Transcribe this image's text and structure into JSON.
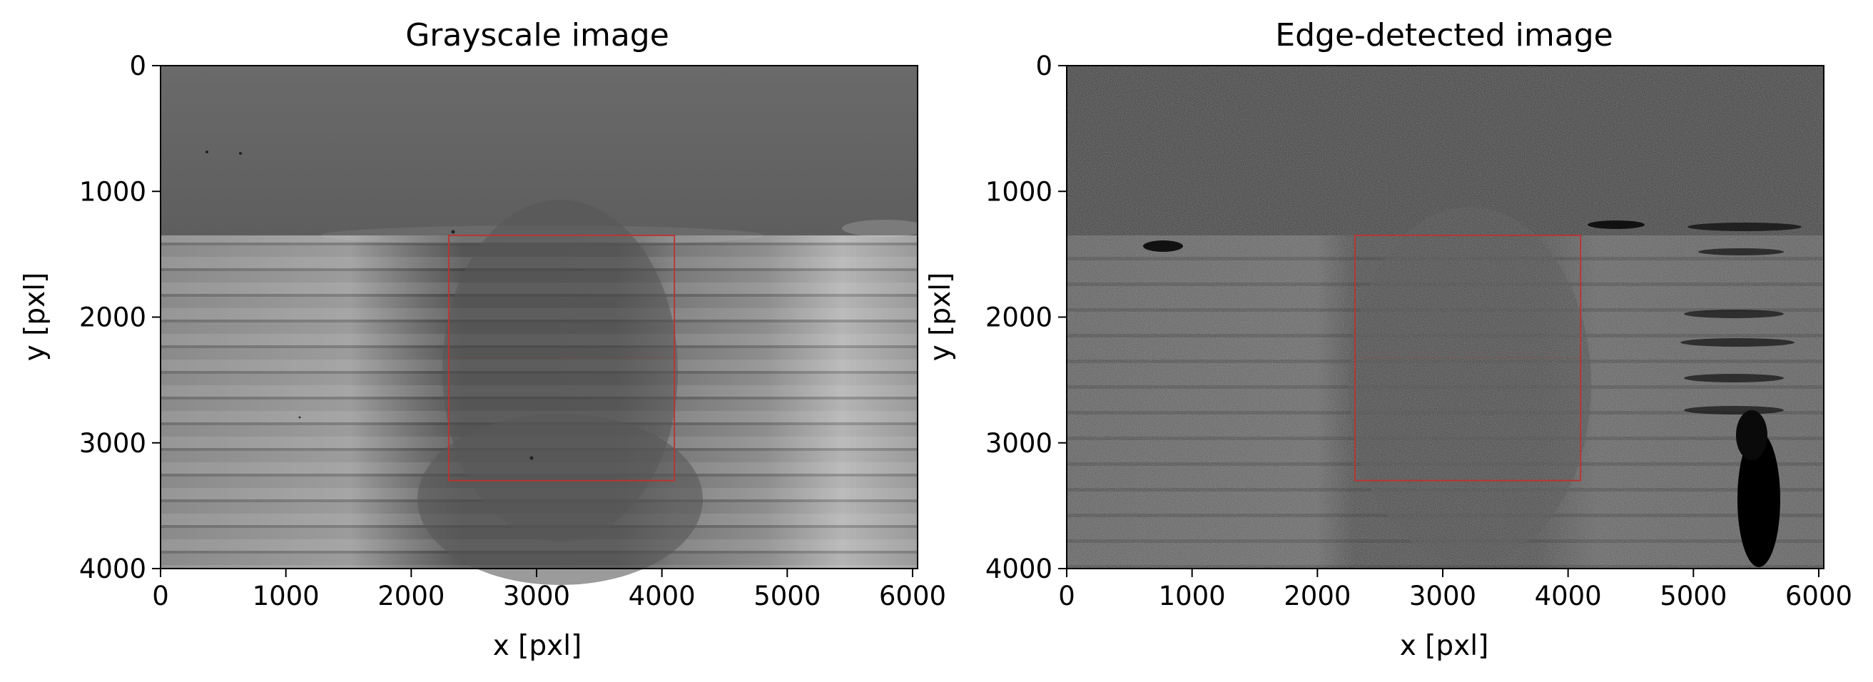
{
  "figure": {
    "background": "#ffffff",
    "roi_color": "#c03030"
  },
  "chart_data": [
    {
      "type": "image",
      "title": "Grayscale image",
      "xlabel": "x [pxl]",
      "ylabel": "y [pxl]",
      "xlim": [
        0,
        6000
      ],
      "ylim": [
        4000,
        0
      ],
      "xticks": [
        0,
        1000,
        2000,
        3000,
        4000,
        5000,
        6000
      ],
      "yticks": [
        0,
        1000,
        2000,
        3000,
        4000
      ],
      "roi": {
        "x0": 2300,
        "x1": 4100,
        "y0": 1350,
        "y1": 3300
      },
      "grid": false,
      "colormap": "gray"
    },
    {
      "type": "image",
      "title": "Edge-detected image",
      "xlabel": "x [pxl]",
      "ylabel": "y [pxl]",
      "xlim": [
        0,
        6000
      ],
      "ylim": [
        4000,
        0
      ],
      "xticks": [
        0,
        1000,
        2000,
        3000,
        4000,
        5000,
        6000
      ],
      "yticks": [
        0,
        1000,
        2000,
        3000,
        4000
      ],
      "roi": {
        "x0": 2300,
        "x1": 4100,
        "y0": 1350,
        "y1": 3300
      },
      "grid": false,
      "colormap": "gray"
    }
  ]
}
